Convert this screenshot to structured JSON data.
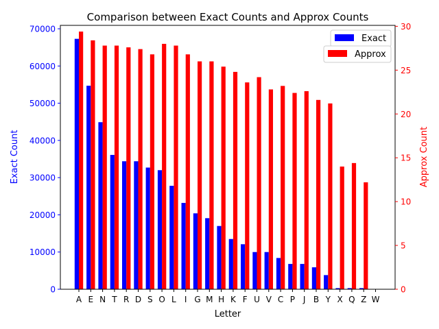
{
  "chart_data": {
    "type": "bar",
    "title": "Comparison between Exact Counts and Approx Counts",
    "xlabel": "Letter",
    "ylabel_left": "Exact Count",
    "ylabel_right": "Approx Count",
    "categories": [
      "A",
      "E",
      "N",
      "T",
      "R",
      "D",
      "S",
      "O",
      "L",
      "I",
      "G",
      "M",
      "H",
      "K",
      "F",
      "U",
      "V",
      "C",
      "P",
      "J",
      "B",
      "Y",
      "X",
      "Q",
      "Z",
      "W"
    ],
    "series": [
      {
        "name": "Exact",
        "axis": "left",
        "color": "#0000ff",
        "values": [
          67300,
          54700,
          44900,
          36100,
          34400,
          34400,
          32700,
          32000,
          27800,
          23200,
          20400,
          19100,
          17000,
          13500,
          12100,
          10000,
          10000,
          8400,
          6800,
          6800,
          5900,
          3800,
          300,
          300,
          300,
          0
        ]
      },
      {
        "name": "Approx",
        "axis": "right",
        "color": "#ff0000",
        "values": [
          29.4,
          28.4,
          27.8,
          27.8,
          27.6,
          27.4,
          26.8,
          28.0,
          27.8,
          26.8,
          26.0,
          26.0,
          25.4,
          24.8,
          23.6,
          24.2,
          22.8,
          23.2,
          22.4,
          22.6,
          21.6,
          21.2,
          14.0,
          14.4,
          12.2,
          0
        ]
      }
    ],
    "ylim_left": [
      0,
      70000
    ],
    "ylim_right": [
      0,
      30.5
    ],
    "yticks_left": [
      "0",
      "10000",
      "20000",
      "30000",
      "40000",
      "50000",
      "60000",
      "70000"
    ],
    "yticks_right": [
      "0",
      "5",
      "10",
      "15",
      "20",
      "25",
      "30"
    ],
    "legend_left_label": "Exact",
    "legend_right_label": "Approx",
    "legend_placement": "top-right",
    "grid": false
  }
}
